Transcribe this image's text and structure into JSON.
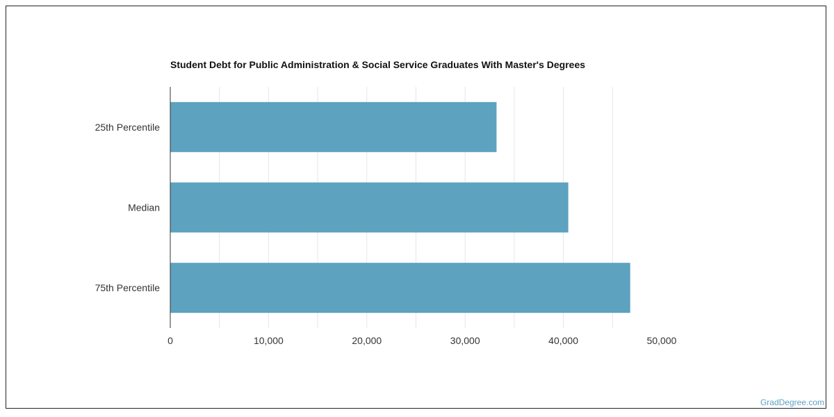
{
  "chart_data": {
    "type": "bar",
    "orientation": "horizontal",
    "title": "Student Debt for Public Administration & Social Service Graduates With Master's Degrees",
    "categories": [
      "25th Percentile",
      "Median",
      "75th Percentile"
    ],
    "values": [
      33200,
      40500,
      46800
    ],
    "xlim": [
      0,
      50000
    ],
    "x_ticks": [
      0,
      10000,
      20000,
      30000,
      40000,
      50000
    ],
    "x_tick_labels": [
      "0",
      "10,000",
      "20,000",
      "30,000",
      "40,000",
      "50,000"
    ],
    "xlabel": "",
    "ylabel": "",
    "grid": true,
    "bar_color": "#5da2bf"
  },
  "watermark": "GradDegree.com"
}
